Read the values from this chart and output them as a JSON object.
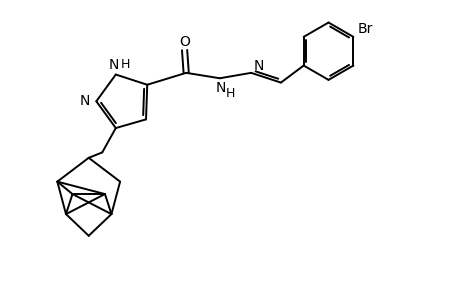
{
  "bg_color": "#ffffff",
  "line_color": "#000000",
  "line_width": 1.4,
  "font_size": 10,
  "figsize": [
    4.6,
    3.0
  ],
  "dpi": 100,
  "xlim": [
    0,
    8.5
  ],
  "ylim": [
    -1.8,
    3.5
  ]
}
